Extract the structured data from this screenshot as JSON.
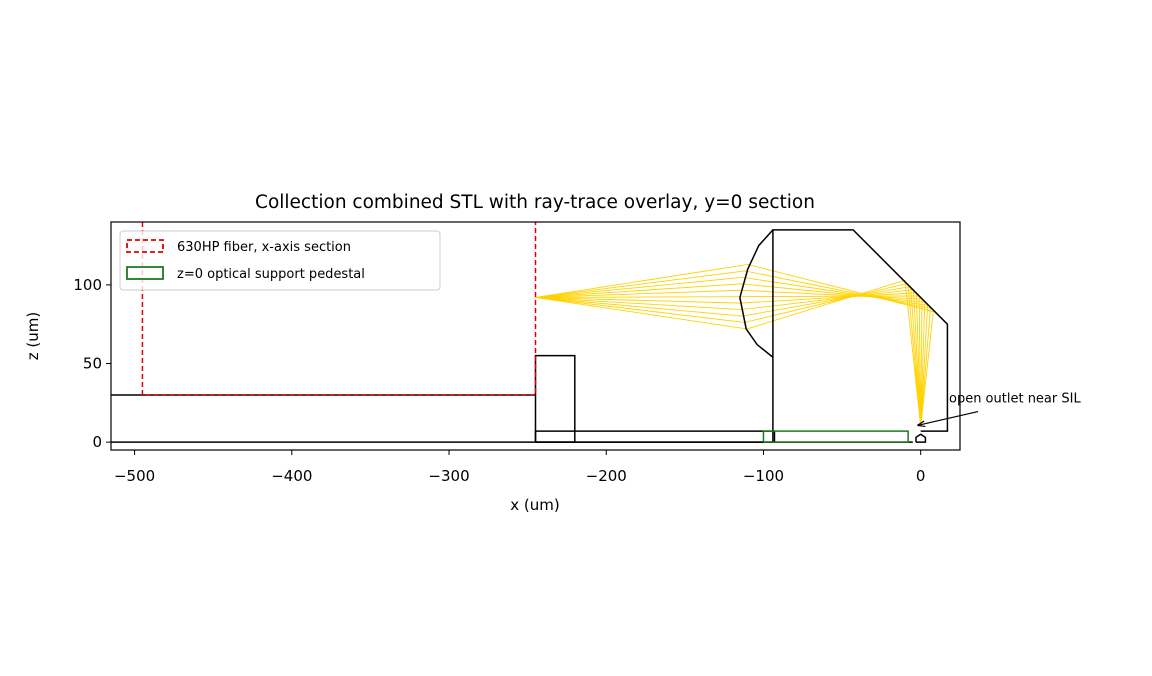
{
  "chart_data": {
    "type": "line",
    "title": "Collection combined STL with ray-trace overlay, y=0 section",
    "xlabel": "x (um)",
    "ylabel": "z (um)",
    "xlim": [
      -515,
      25
    ],
    "ylim": [
      -5,
      140
    ],
    "xticks": [
      {
        "value": -500,
        "label": "−500"
      },
      {
        "value": -400,
        "label": "−400"
      },
      {
        "value": -300,
        "label": "−300"
      },
      {
        "value": -200,
        "label": "−200"
      },
      {
        "value": -100,
        "label": "−100"
      },
      0
    ],
    "yticks": [
      0,
      50,
      100
    ],
    "legend": "upper left",
    "series": [
      {
        "color": "#ffd200",
        "x": [
          -245,
          -110.5,
          -10,
          0
        ],
        "values": [
          92,
          72,
          103,
          10
        ]
      },
      {
        "color": "#ffd200",
        "x": [
          -245,
          -112.1,
          -8.2,
          0
        ],
        "values": [
          92,
          76.1,
          101,
          10
        ]
      },
      {
        "color": "#ffd200",
        "x": [
          -245,
          -113.4,
          -6.4,
          0
        ],
        "values": [
          92,
          80.2,
          99,
          10
        ]
      },
      {
        "color": "#ffd200",
        "x": [
          -245,
          -114.3,
          -4.6,
          0
        ],
        "values": [
          92,
          84.3,
          97,
          10
        ]
      },
      {
        "color": "#ffd200",
        "x": [
          -245,
          -114.9,
          -2.8,
          0
        ],
        "values": [
          92,
          88.4,
          95,
          10
        ]
      },
      {
        "color": "#ffd200",
        "x": [
          -245,
          -115,
          -1,
          0
        ],
        "values": [
          92,
          92.5,
          93,
          10
        ]
      },
      {
        "color": "#ffd200",
        "x": [
          -245,
          -114.8,
          0.8,
          0
        ],
        "values": [
          92,
          96.6,
          91,
          10
        ]
      },
      {
        "color": "#ffd200",
        "x": [
          -245,
          -114.1,
          2.6,
          0
        ],
        "values": [
          92,
          100.7,
          89,
          10
        ]
      },
      {
        "color": "#ffd200",
        "x": [
          -245,
          -113.1,
          4.4,
          0
        ],
        "values": [
          92,
          104.8,
          87,
          10
        ]
      },
      {
        "color": "#ffd200",
        "x": [
          -245,
          -111.8,
          6.2,
          0
        ],
        "values": [
          92,
          108.9,
          85,
          10
        ]
      },
      {
        "color": "#ffd200",
        "x": [
          -245,
          -110,
          8,
          0
        ],
        "values": [
          92,
          113,
          83,
          10
        ]
      },
      {
        "color": "#000000",
        "x": [
          -515,
          -245
        ],
        "values": [
          30,
          30
        ]
      },
      {
        "color": "#000000",
        "x": [
          -245,
          -245,
          -220,
          -220,
          -245
        ],
        "values": [
          0,
          55,
          55,
          0,
          0
        ]
      },
      {
        "color": "#000000",
        "x": [
          -515,
          -5
        ],
        "values": [
          0,
          0
        ]
      },
      {
        "color": "#000000",
        "x": [
          -245,
          -245,
          -93,
          -93,
          -245
        ],
        "values": [
          0,
          7,
          7,
          0,
          0
        ]
      },
      {
        "color": "#000000",
        "x": [
          -94,
          -94,
          -43,
          17,
          17,
          0
        ],
        "values": [
          0,
          135,
          135,
          75,
          7,
          7
        ]
      },
      {
        "color": "#000000",
        "x": [
          -94,
          -103,
          -110,
          -115,
          -111,
          -104,
          -94
        ],
        "values": [
          135,
          125,
          110,
          92,
          72,
          62,
          54
        ]
      },
      {
        "color": "#000000",
        "x": [
          -3,
          -3,
          0,
          3,
          3,
          -3
        ],
        "values": [
          0,
          3,
          5,
          3,
          0,
          0
        ]
      },
      {
        "name": "630HP fiber, x-axis section",
        "color": "#e00000",
        "dash": "5,3",
        "x": [
          -495,
          -495,
          -245,
          -245
        ],
        "values": [
          140,
          30,
          30,
          140
        ]
      },
      {
        "name": "z=0 optical support pedestal",
        "color": "#1f7a1f",
        "x": [
          -100,
          -100,
          -8,
          -8,
          -100
        ],
        "values": [
          0,
          7,
          7,
          0,
          0
        ]
      }
    ],
    "annotation": {
      "text": "open outlet near SIL",
      "xy": [
        -4,
        10
      ],
      "xytext": [
        18,
        29
      ]
    }
  }
}
